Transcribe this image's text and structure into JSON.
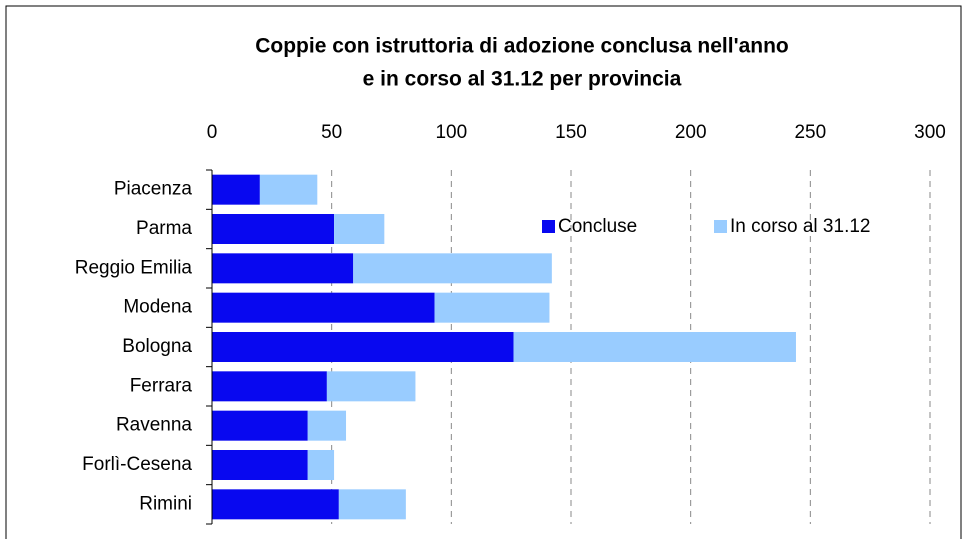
{
  "chart_data": {
    "type": "bar",
    "orientation": "horizontal",
    "stacked": true,
    "title": [
      "Coppie con istruttoria di adozione conclusa nell'anno",
      "e in corso al 31.12 per provincia"
    ],
    "categories": [
      "Piacenza",
      "Parma",
      "Reggio Emilia",
      "Modena",
      "Bologna",
      "Ferrara",
      "Ravenna",
      "Forlì-Cesena",
      "Rimini"
    ],
    "series": [
      {
        "name": "Concluse",
        "color": "#0808f0",
        "values": [
          20,
          51,
          59,
          93,
          126,
          48,
          40,
          40,
          53
        ]
      },
      {
        "name": "In corso al 31.12",
        "color": "#99ccff",
        "values": [
          24,
          21,
          83,
          48,
          118,
          37,
          16,
          11,
          28
        ]
      }
    ],
    "xlim": [
      0,
      300
    ],
    "xticks": [
      0,
      50,
      100,
      150,
      200,
      250,
      300
    ],
    "grid": true
  }
}
